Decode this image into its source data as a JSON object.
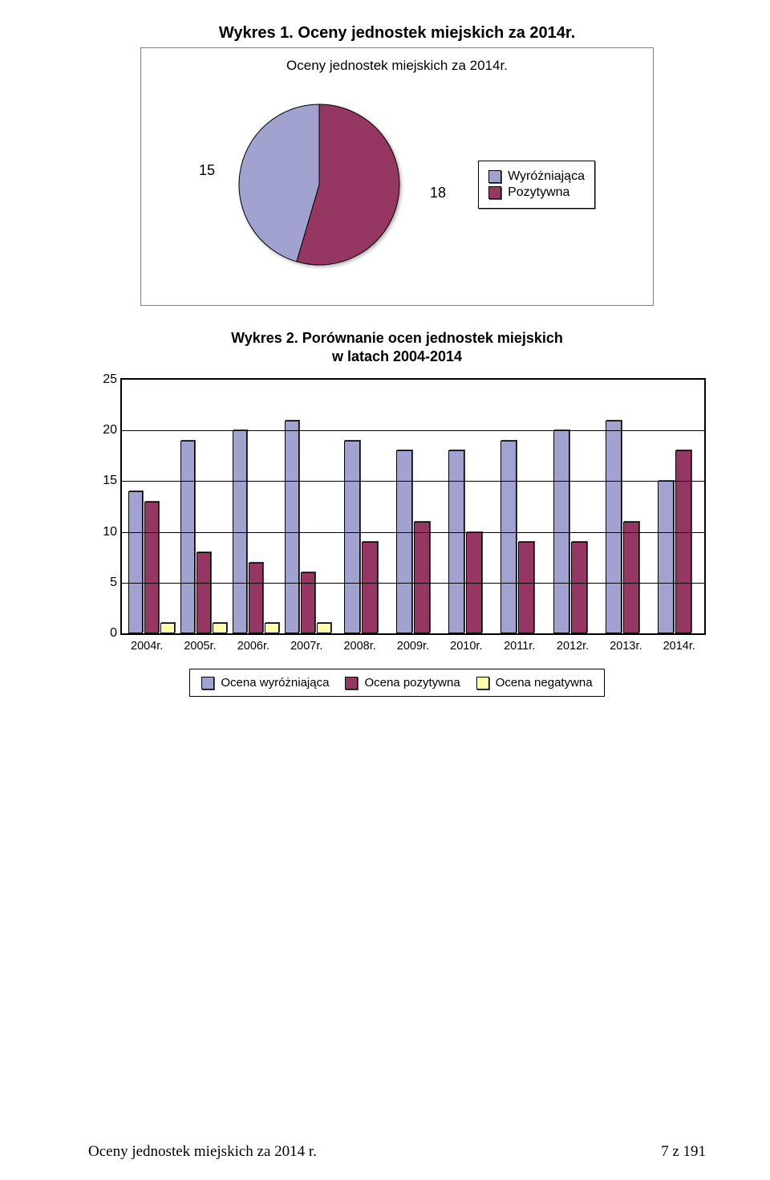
{
  "title_main": "Wykres 1. Oceny jednostek miejskich za 2014r.",
  "pie": {
    "panel_title": "Oceny jednostek miejskich za 2014r.",
    "slices": [
      {
        "label": "Wyróżniająca",
        "value": 15,
        "color": "#a2a2d0"
      },
      {
        "label": "Pozytywna",
        "value": 18,
        "color": "#953762"
      }
    ],
    "outline_color": "#000000",
    "background": "#ffffff",
    "label_fontsize": 18
  },
  "bar": {
    "title_line1": "Wykres 2. Porównanie ocen jednostek miejskich",
    "title_line2": "w latach 2004-2014",
    "ymax": 25,
    "ytick_step": 5,
    "yticks": [
      0,
      5,
      10,
      15,
      20,
      25
    ],
    "categories": [
      "2004r.",
      "2005r.",
      "2006r.",
      "2007r.",
      "2008r.",
      "2009r.",
      "2010r.",
      "2011r.",
      "2012r.",
      "2013r.",
      "2014r."
    ],
    "series": [
      {
        "name": "Ocena wyróżniająca",
        "color": "#a2a2d0",
        "values": [
          14,
          19,
          20,
          21,
          19,
          18,
          18,
          19,
          20,
          21,
          15
        ]
      },
      {
        "name": "Ocena pozytywna",
        "color": "#953762",
        "values": [
          13,
          8,
          7,
          6,
          9,
          11,
          10,
          9,
          9,
          11,
          18
        ]
      },
      {
        "name": "Ocena negatywna",
        "color": "#ffffa8",
        "values": [
          1,
          1,
          1,
          1,
          0,
          0,
          0,
          0,
          0,
          0,
          0
        ]
      }
    ],
    "grid_color": "#000000",
    "background": "#ffffff",
    "label_fontsize": 16
  },
  "footer": {
    "left": "Oceny jednostek miejskich za 2014 r.",
    "right": "7 z 191"
  }
}
